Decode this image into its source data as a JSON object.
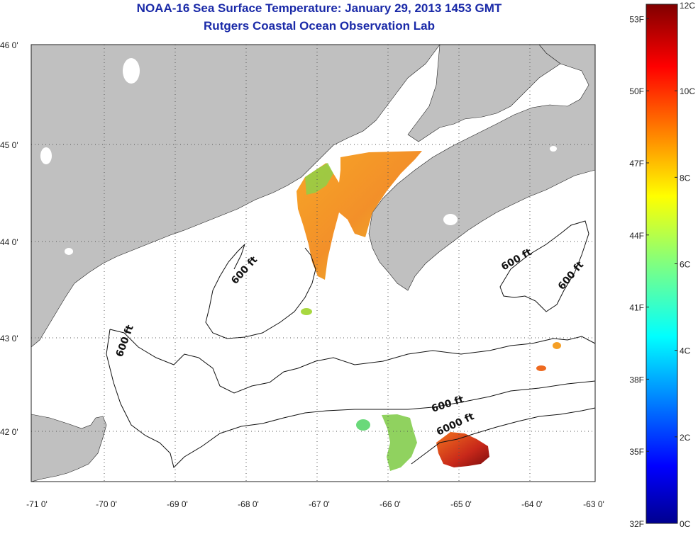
{
  "header": {
    "title": "NOAA-16 Sea Surface Temperature:  January 29, 2013 1453 GMT",
    "subtitle": "Rutgers Coastal Ocean Observation Lab"
  },
  "map": {
    "lon_range": [
      -71,
      -63
    ],
    "lat_range": [
      41.5,
      46
    ],
    "lon_ticks": [
      "-71 0'",
      "-70 0'",
      "-69 0'",
      "-68 0'",
      "-67 0'",
      "-66 0'",
      "-65 0'",
      "-64 0'",
      "-63 0'"
    ],
    "lat_ticks": [
      "46 0'",
      "45 0'",
      "44 0'",
      "43 0'",
      "42 0'"
    ],
    "contour_labels": [
      "600 ft",
      "600 ft",
      "600 ft",
      "600 ft",
      "600 ft",
      "6000 ft"
    ],
    "colors": {
      "land": "#c0c0c0",
      "ocean": "#ffffff",
      "grid": "#555555"
    }
  },
  "colorbar": {
    "celsius_labels": [
      "12C",
      "10C",
      "8C",
      "6C",
      "4C",
      "2C",
      "0C"
    ],
    "fahrenheit_labels": [
      "53F",
      "50F",
      "47F",
      "44F",
      "41F",
      "38F",
      "35F",
      "32F"
    ],
    "colormap": "jet",
    "range_c": [
      0,
      12
    ]
  }
}
